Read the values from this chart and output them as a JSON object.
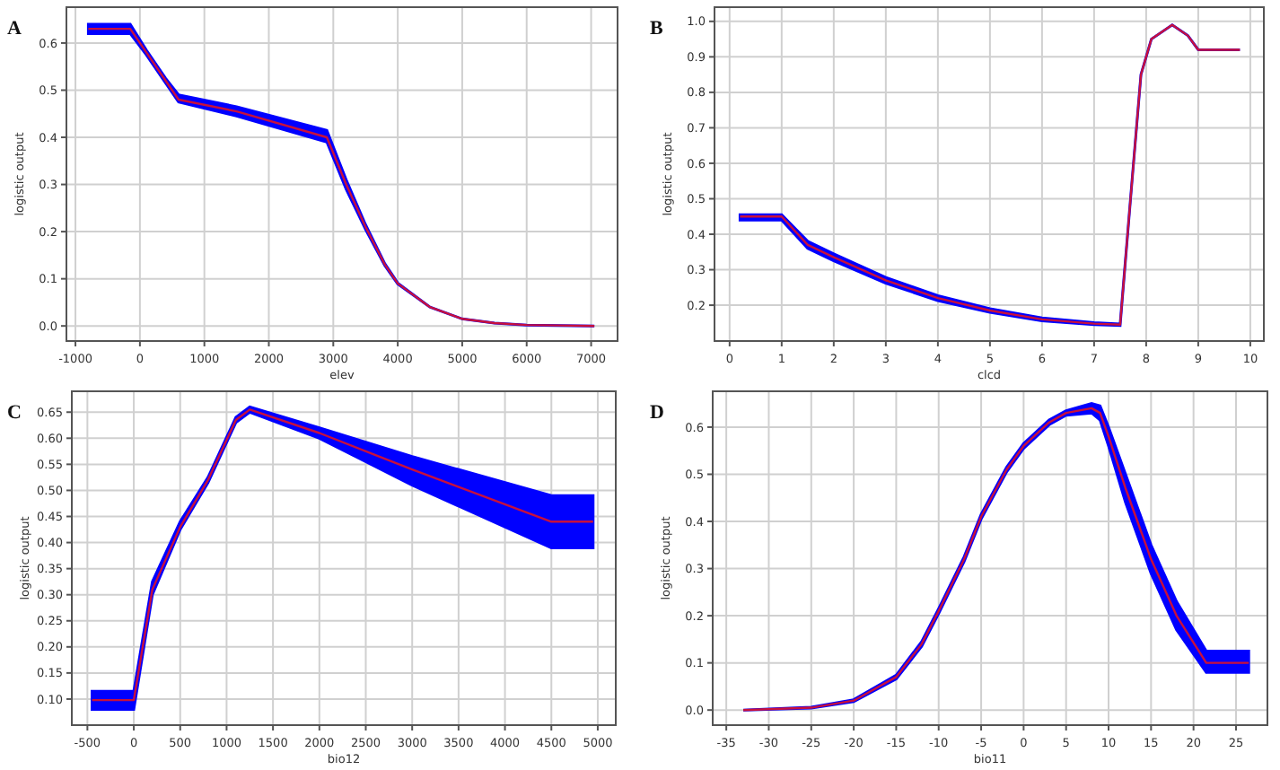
{
  "chart_data": [
    {
      "type": "line",
      "title": "A",
      "xlabel": "elev",
      "ylabel": "logistic output",
      "xlim": [
        -1140,
        7410
      ],
      "xticks": [
        -1000,
        0,
        1000,
        2000,
        3000,
        4000,
        5000,
        6000,
        7000
      ],
      "ylim": [
        -0.032,
        0.676
      ],
      "yticks": [
        {
          "value": 0,
          "label": "0.0"
        },
        0.1,
        0.2,
        0.3,
        0.4,
        0.5,
        0.6
      ],
      "grid": true,
      "series": [
        {
          "color": "#c8103c",
          "x": [
            -800,
            -150,
            100,
            400,
            600,
            1500,
            2900,
            3200,
            3500,
            3800,
            4000,
            4500,
            5000,
            5500,
            6000,
            6500,
            7050
          ],
          "values": [
            0.63,
            0.63,
            0.58,
            0.52,
            0.48,
            0.455,
            0.4,
            0.3,
            0.21,
            0.13,
            0.09,
            0.04,
            0.015,
            0.006,
            0.002,
            0.001,
            0
          ],
          "lower": [
            0.62,
            0.62,
            0.575,
            0.515,
            0.475,
            0.445,
            0.39,
            0.29,
            0.205,
            0.128,
            0.089,
            0.04,
            0.015,
            0.006,
            0.002,
            0.001,
            0
          ],
          "upper": [
            0.64,
            0.64,
            0.585,
            0.525,
            0.49,
            0.465,
            0.415,
            0.31,
            0.215,
            0.132,
            0.091,
            0.04,
            0.015,
            0.006,
            0.002,
            0.001,
            0
          ]
        }
      ]
    },
    {
      "type": "line",
      "title": "B",
      "xlabel": "clcd",
      "ylabel": "logistic output",
      "xlim": [
        -0.29,
        10.26
      ],
      "xticks": [
        0,
        1,
        2,
        3,
        4,
        5,
        6,
        7,
        8,
        9,
        10
      ],
      "ylim": [
        0.099,
        1.04
      ],
      "yticks": [
        0.2,
        0.3,
        0.4,
        0.5,
        0.6,
        0.7,
        0.8,
        0.9,
        {
          "value": 1,
          "label": "1.0"
        }
      ],
      "grid": true,
      "series": [
        {
          "color": "#c8103c",
          "x": [
            0.2,
            1,
            1.5,
            2,
            3,
            4,
            5,
            6,
            7,
            7.5,
            7.7,
            7.9,
            8.1,
            8.5,
            8.8,
            9,
            9.8
          ],
          "values": [
            0.45,
            0.45,
            0.37,
            0.335,
            0.27,
            0.22,
            0.185,
            0.16,
            0.148,
            0.145,
            0.5,
            0.85,
            0.95,
            0.99,
            0.96,
            0.92,
            0.92
          ],
          "lower": [
            0.44,
            0.44,
            0.36,
            0.325,
            0.262,
            0.213,
            0.18,
            0.156,
            0.145,
            0.143,
            0.5,
            0.85,
            0.95,
            0.99,
            0.96,
            0.92,
            0.92
          ],
          "upper": [
            0.455,
            0.455,
            0.38,
            0.345,
            0.278,
            0.227,
            0.19,
            0.164,
            0.151,
            0.147,
            0.5,
            0.85,
            0.95,
            0.99,
            0.96,
            0.92,
            0.92
          ]
        }
      ]
    },
    {
      "type": "line",
      "title": "C",
      "xlabel": "bio12",
      "ylabel": "logistic output",
      "xlim": [
        -668,
        5194
      ],
      "xticks": [
        -500,
        0,
        500,
        1000,
        1500,
        2000,
        2500,
        3000,
        3500,
        4000,
        4500,
        5000
      ],
      "ylim": [
        0.05,
        0.69
      ],
      "yticks": [
        {
          "value": 0.1,
          "label": "0.10"
        },
        0.15,
        {
          "value": 0.2,
          "label": "0.20"
        },
        0.25,
        {
          "value": 0.3,
          "label": "0.30"
        },
        0.35,
        {
          "value": 0.4,
          "label": "0.40"
        },
        0.45,
        {
          "value": 0.5,
          "label": "0.50"
        },
        0.55,
        {
          "value": 0.6,
          "label": "0.60"
        },
        0.65
      ],
      "grid": true,
      "series": [
        {
          "color": "#c8103c",
          "x": [
            -450,
            0,
            200,
            500,
            800,
            1100,
            1250,
            2000,
            3000,
            4500,
            4950
          ],
          "values": [
            0.098,
            0.098,
            0.31,
            0.43,
            0.52,
            0.635,
            0.655,
            0.61,
            0.54,
            0.44,
            0.44
          ],
          "lower": [
            0.08,
            0.08,
            0.3,
            0.425,
            0.515,
            0.63,
            0.65,
            0.6,
            0.51,
            0.39,
            0.39
          ],
          "upper": [
            0.115,
            0.115,
            0.325,
            0.44,
            0.525,
            0.64,
            0.66,
            0.62,
            0.565,
            0.49,
            0.49
          ]
        }
      ]
    },
    {
      "type": "line",
      "title": "D",
      "xlabel": "bio11",
      "ylabel": "logistic output",
      "xlim": [
        -36.6,
        28.7
      ],
      "xticks": [
        -35,
        -30,
        -25,
        -20,
        -15,
        -10,
        -5,
        0,
        5,
        10,
        15,
        20,
        25
      ],
      "ylim": [
        -0.032,
        0.676
      ],
      "yticks": [
        {
          "value": 0,
          "label": "0.0"
        },
        0.1,
        0.2,
        0.3,
        0.4,
        0.5,
        0.6
      ],
      "grid": true,
      "series": [
        {
          "color": "#c8103c",
          "x": [
            -33,
            -25,
            -20,
            -15,
            -12,
            -10,
            -7,
            -5,
            -2,
            0,
            3,
            5,
            8,
            9,
            10,
            12,
            15,
            18,
            21.5,
            26.5
          ],
          "values": [
            0,
            0.005,
            0.02,
            0.07,
            0.14,
            0.21,
            0.32,
            0.41,
            0.51,
            0.56,
            0.61,
            0.63,
            0.64,
            0.63,
            0.58,
            0.47,
            0.32,
            0.2,
            0.1,
            0.1
          ],
          "lower": [
            0,
            0.004,
            0.018,
            0.066,
            0.135,
            0.205,
            0.315,
            0.405,
            0.505,
            0.555,
            0.605,
            0.625,
            0.63,
            0.615,
            0.56,
            0.44,
            0.29,
            0.17,
            0.08,
            0.08
          ],
          "upper": [
            0,
            0.006,
            0.022,
            0.074,
            0.145,
            0.215,
            0.325,
            0.415,
            0.515,
            0.565,
            0.615,
            0.635,
            0.65,
            0.645,
            0.6,
            0.5,
            0.35,
            0.23,
            0.125,
            0.125
          ]
        }
      ]
    }
  ]
}
